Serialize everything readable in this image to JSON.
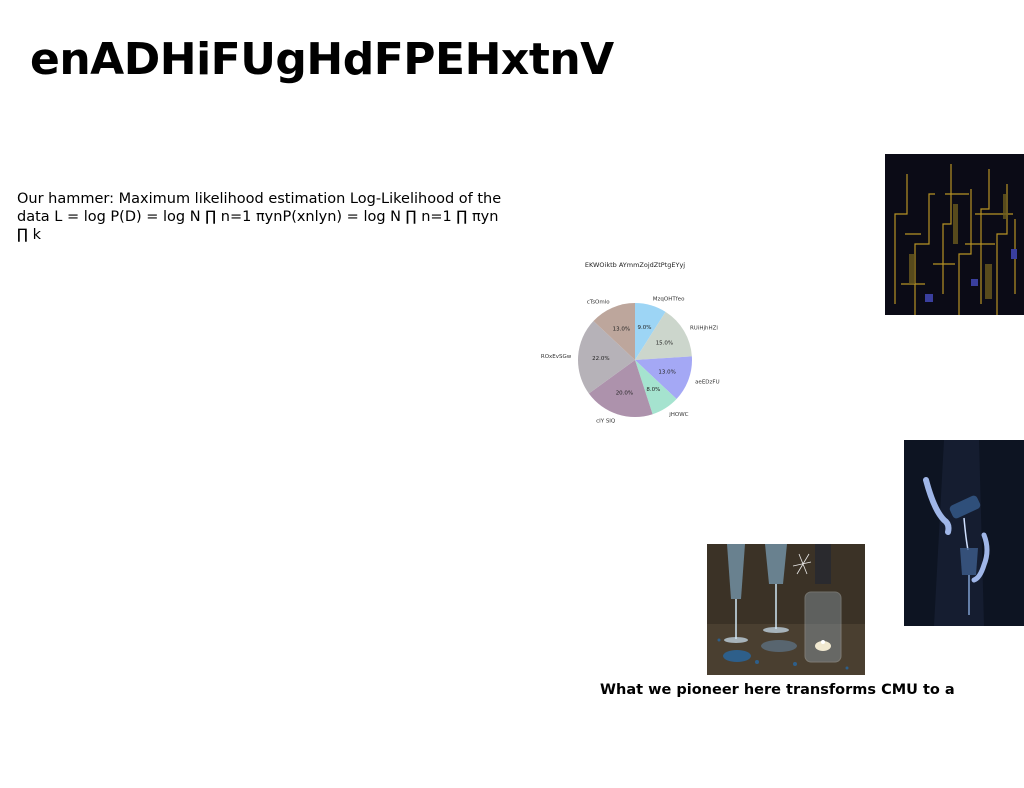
{
  "slide": {
    "title": "enADHiFUgHdFPEHxtnV",
    "body": "Our hammer: Maximum likelihood estimation Log-Likelihood of the data L = log P(D) = log N ∏ n=1 πynP(xnlyn) = log N ∏ n=1 ∏ πyn ∏ k",
    "caption": "What we pioneer here transforms CMU to a"
  },
  "images": [
    {
      "name": "abstract-city-image",
      "colors": [
        "#0b0b16",
        "#c9a227",
        "#6b5a1e",
        "#3a3f9e"
      ]
    },
    {
      "name": "pouring-drink-image",
      "colors": [
        "#0d1422",
        "#9fb6e8",
        "#2f4f7a"
      ]
    },
    {
      "name": "champagne-glasses-image",
      "colors": [
        "#3b3226",
        "#8fc3e6",
        "#2e5f8a",
        "#d9d2c0"
      ]
    }
  ],
  "chart_data": {
    "type": "pie",
    "title": "EKWOiktb AYmmZojdZtPtgEYyj",
    "start_angle_deg": 90,
    "direction": "clockwise",
    "slices": [
      {
        "label": "MzqOHTfeo",
        "value": 9.0,
        "pct_label": "9.0%",
        "color": "#9dd5f5"
      },
      {
        "label": "RUiHjhHZl",
        "value": 15.0,
        "pct_label": "15.0%",
        "color": "#ccd6cc"
      },
      {
        "label": "aeEDzFU",
        "value": 13.0,
        "pct_label": "13.0%",
        "color": "#a4a8f5"
      },
      {
        "label": "jHOWC",
        "value": 8.0,
        "pct_label": "8.0%",
        "color": "#a5e3cf"
      },
      {
        "label": "cIY SIQ",
        "value": 20.0,
        "pct_label": "20.0%",
        "color": "#ad92ac"
      },
      {
        "label": "ROxEvSGw",
        "value": 22.0,
        "pct_label": "22.0%",
        "color": "#b6b2b8"
      },
      {
        "label": "cTsOmlo",
        "value": 13.0,
        "pct_label": "13.0%",
        "color": "#bda69c"
      }
    ]
  }
}
